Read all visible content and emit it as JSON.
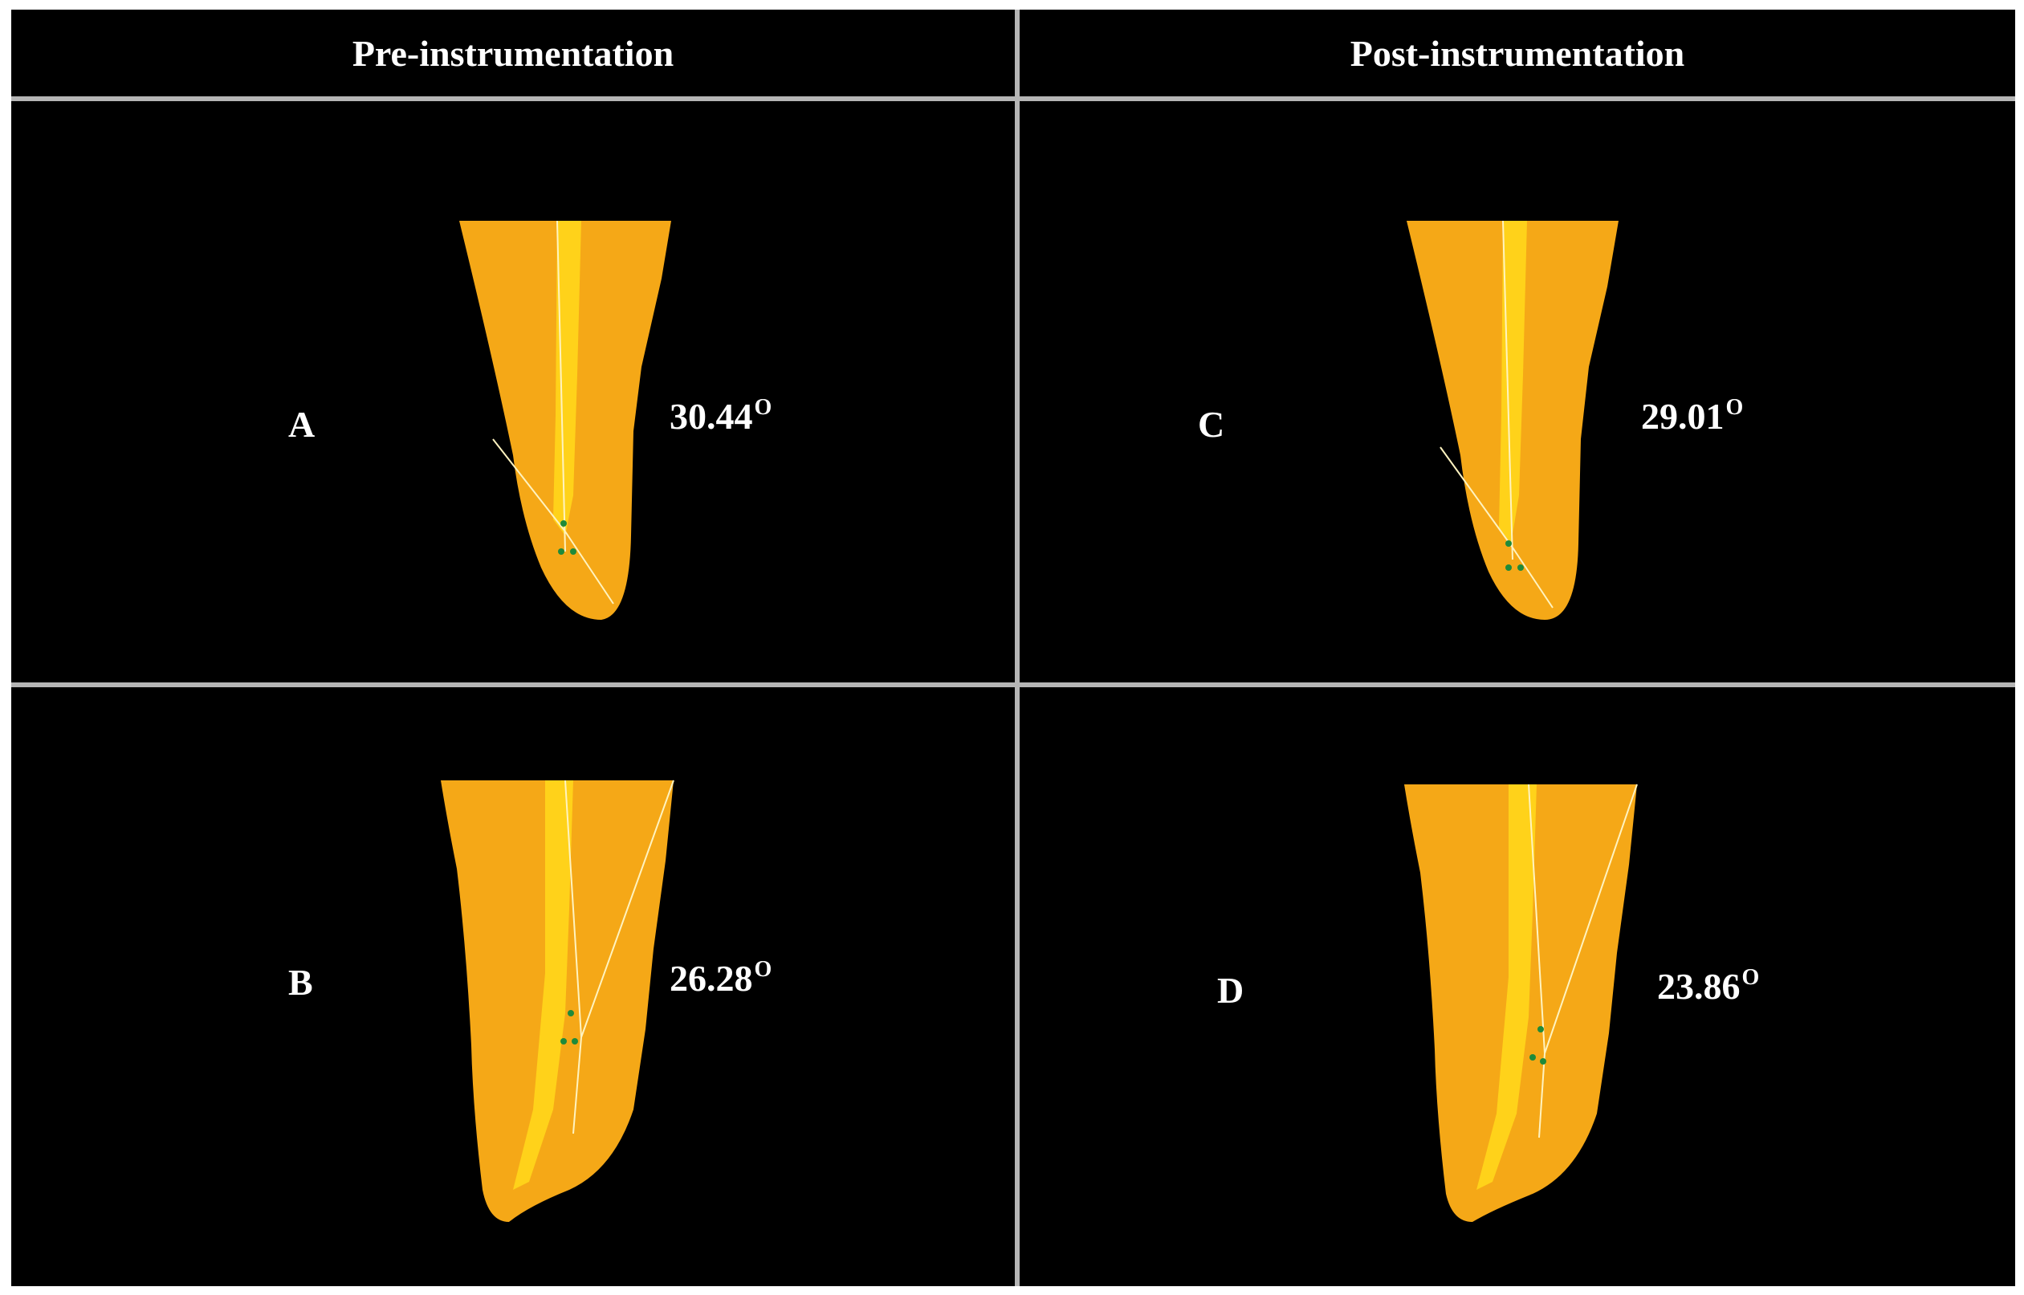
{
  "header": {
    "pre_label": "Pre-instrumentation",
    "post_label": "Post-instrumentation"
  },
  "panels": [
    {
      "letter": "A",
      "angle": "30.44",
      "degree_mark": "O"
    },
    {
      "letter": "C",
      "angle": "29.01",
      "degree_mark": "O"
    },
    {
      "letter": "B",
      "angle": "26.28",
      "degree_mark": "O"
    },
    {
      "letter": "D",
      "angle": "23.86",
      "degree_mark": "O"
    }
  ],
  "colors": {
    "background": "#000000",
    "divider": "#b5b5b5",
    "tooth_outer": "#f5a817",
    "tooth_canal": "#ffd21a",
    "marker_dots": "#1f8a3a"
  }
}
